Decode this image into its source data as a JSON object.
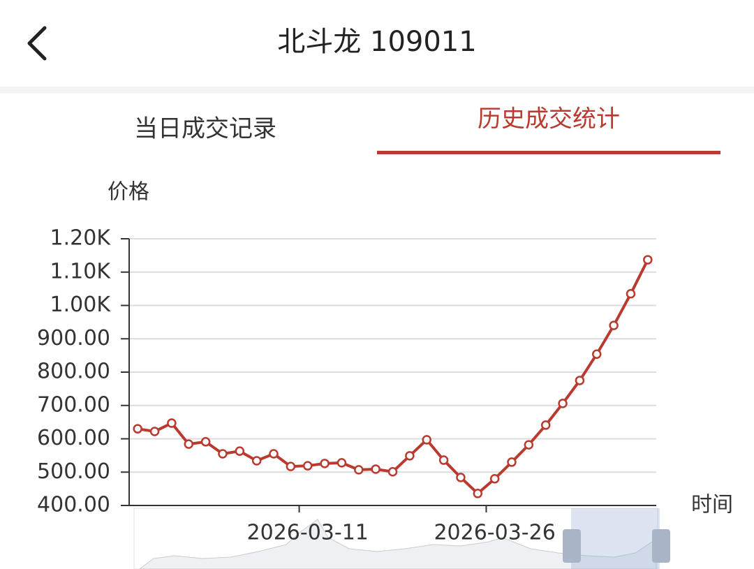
{
  "header": {
    "title": "北斗龙 109011"
  },
  "tabs": [
    "当日成交记录",
    "历史成交统计"
  ],
  "chart_data": {
    "type": "line",
    "y_axis_name": "价格",
    "x_axis_name": "时间",
    "color": "#b93a2e",
    "categories": [
      null,
      null,
      null,
      null,
      null,
      null,
      null,
      null,
      null,
      null,
      "2026-03-11",
      null,
      null,
      null,
      null,
      null,
      null,
      null,
      null,
      null,
      null,
      "2026-03-26",
      null,
      null,
      null,
      null,
      null,
      null,
      null,
      null,
      null
    ],
    "values": [
      630,
      622,
      647,
      584,
      591,
      555,
      563,
      534,
      555,
      517,
      519,
      526,
      528,
      507,
      509,
      501,
      549,
      597,
      536,
      484,
      436,
      480,
      530,
      582,
      641,
      706,
      775,
      854,
      940,
      1035,
      1137
    ],
    "ylim": [
      400,
      1200
    ],
    "yticks": [
      {
        "value": 400,
        "label": "400.00"
      },
      {
        "value": 500,
        "label": "500.00"
      },
      {
        "value": 600,
        "label": "600.00"
      },
      {
        "value": 700,
        "label": "700.00"
      },
      {
        "value": 800,
        "label": "800.00"
      },
      {
        "value": 900,
        "label": "900.00"
      },
      {
        "value": 1000,
        "label": "1.00K"
      },
      {
        "value": 1100,
        "label": "1.10K"
      },
      {
        "value": 1200,
        "label": "1.20K"
      }
    ],
    "grid": true
  }
}
